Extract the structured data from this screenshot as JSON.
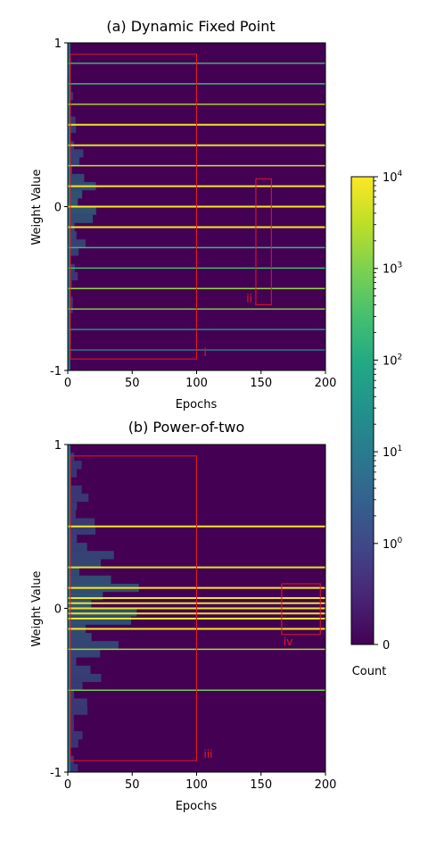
{
  "chart_data": [
    {
      "type": "heatmap",
      "title": "(a) Dynamic Fixed Point",
      "xlabel": "Epochs",
      "ylabel": "Weight Value",
      "xlim": [
        0,
        200
      ],
      "ylim": [
        -1,
        1
      ],
      "xticks": [
        "0",
        "50",
        "100",
        "150",
        "200"
      ],
      "yticks": [
        "-1",
        "0",
        "1"
      ],
      "levels": [
        {
          "y": 0.875,
          "count": 300
        },
        {
          "y": 0.75,
          "count": 200
        },
        {
          "y": 0.625,
          "count": 3000
        },
        {
          "y": 0.5,
          "count": 7000
        },
        {
          "y": 0.375,
          "count": 5000
        },
        {
          "y": 0.25,
          "count": 4000
        },
        {
          "y": 0.125,
          "count": 9000
        },
        {
          "y": 0.0,
          "count": 10000
        },
        {
          "y": -0.125,
          "count": 9000
        },
        {
          "y": -0.25,
          "count": 200
        },
        {
          "y": -0.375,
          "count": 300
        },
        {
          "y": -0.5,
          "count": 1500
        },
        {
          "y": -0.625,
          "count": 1200
        },
        {
          "y": -0.75,
          "count": 30
        },
        {
          "y": -0.875,
          "count": 15
        }
      ],
      "annotations": [
        {
          "label": "i",
          "x_range": [
            2,
            100
          ],
          "y_range": [
            -0.93,
            0.93
          ]
        },
        {
          "label": "ii",
          "x_range": [
            146,
            158
          ],
          "y_range": [
            -0.6,
            0.17
          ]
        }
      ]
    },
    {
      "type": "heatmap",
      "title": "(b) Power-of-two",
      "xlabel": "Epochs",
      "ylabel": "Weight Value",
      "xlim": [
        0,
        200
      ],
      "ylim": [
        -1,
        1
      ],
      "xticks": [
        "0",
        "50",
        "100",
        "150",
        "200"
      ],
      "yticks": [
        "-1",
        "0",
        "1"
      ],
      "levels": [
        {
          "y": 0.5,
          "count": 9000
        },
        {
          "y": 0.25,
          "count": 6000
        },
        {
          "y": 0.125,
          "count": 10000
        },
        {
          "y": 0.0625,
          "count": 8000
        },
        {
          "y": 0.03125,
          "count": 7000
        },
        {
          "y": 0.0,
          "count": 8000
        },
        {
          "y": -0.03125,
          "count": 7000
        },
        {
          "y": -0.0625,
          "count": 8000
        },
        {
          "y": -0.125,
          "count": 10000
        },
        {
          "y": -0.25,
          "count": 2000
        },
        {
          "y": -0.5,
          "count": 800
        }
      ],
      "annotations": [
        {
          "label": "iii",
          "x_range": [
            2,
            100
          ],
          "y_range": [
            -0.93,
            0.93
          ]
        },
        {
          "label": "iv",
          "x_range": [
            166,
            196
          ],
          "y_range": [
            -0.16,
            0.15
          ]
        }
      ]
    }
  ],
  "colorbar": {
    "label": "Count",
    "scale": "symlog",
    "range": [
      0,
      10000
    ],
    "ticks": [
      {
        "value": 10000,
        "base": "10",
        "exp": "4"
      },
      {
        "value": 1000,
        "base": "10",
        "exp": "3"
      },
      {
        "value": 100,
        "base": "10",
        "exp": "2"
      },
      {
        "value": 10,
        "base": "10",
        "exp": "1"
      },
      {
        "value": 1,
        "base": "10",
        "exp": "0"
      },
      {
        "value": 0,
        "base": "0",
        "exp": ""
      }
    ],
    "colors": [
      "#440154",
      "#482475",
      "#414487",
      "#355f8d",
      "#2a788e",
      "#21918c",
      "#22a884",
      "#44bf70",
      "#7ad151",
      "#bddf26",
      "#fde725"
    ]
  },
  "annotation_color": "#e41a1c"
}
